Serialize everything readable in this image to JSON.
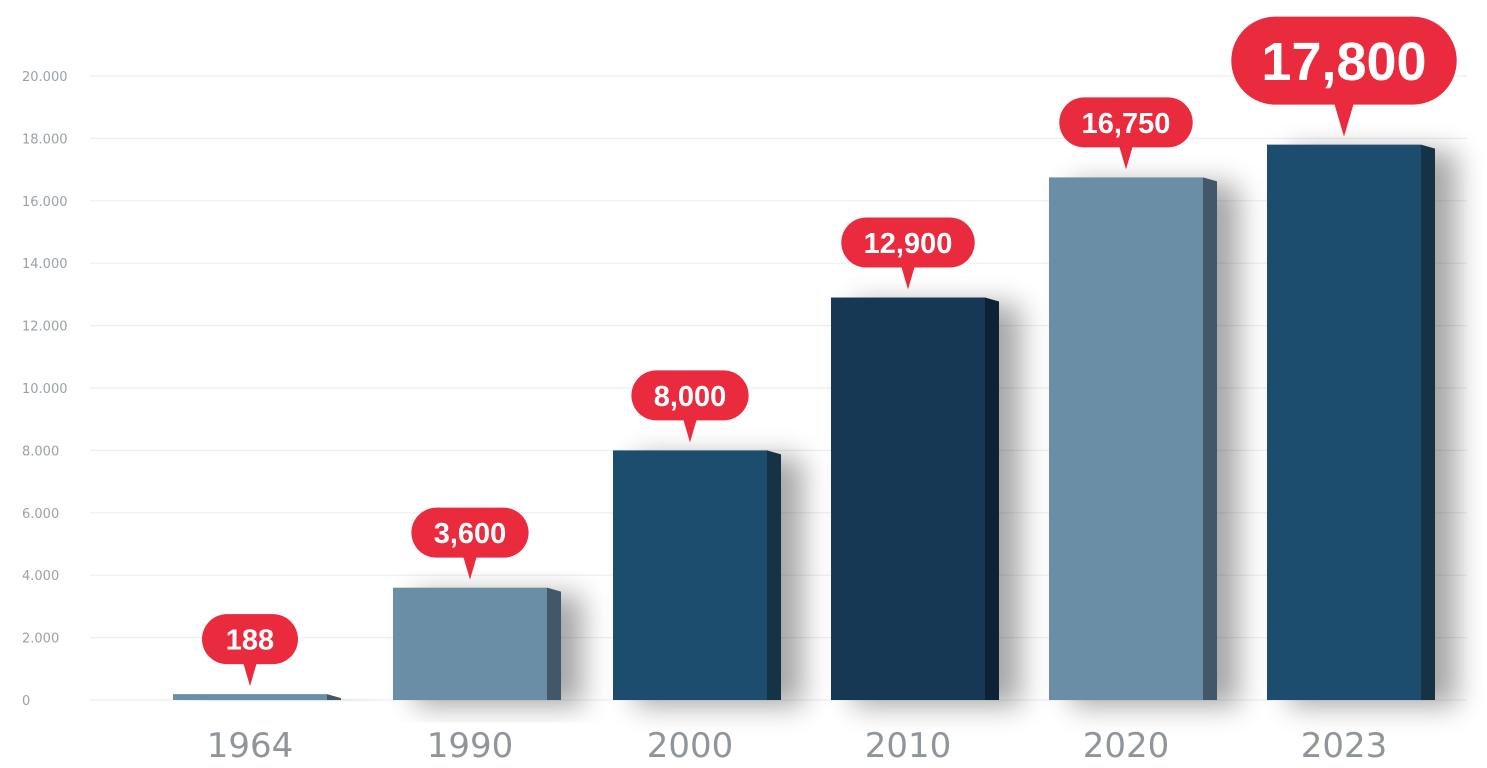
{
  "colors": {
    "accent_red": "#ea2a3d",
    "bar_dark": "#1f4d6e",
    "bar_darker": "#173954",
    "bar_light": "#6a8ea6",
    "grid": "#eceef1",
    "tick_text": "#9aa1a8"
  },
  "chart_data": {
    "type": "bar",
    "title": "",
    "xlabel": "",
    "ylabel": "",
    "categories": [
      "1964",
      "1990",
      "2000",
      "2010",
      "2020",
      "2023"
    ],
    "values": [
      188,
      3600,
      8000,
      12900,
      16750,
      17800
    ],
    "value_labels": [
      "188",
      "3,600",
      "8,000",
      "12,900",
      "16,750",
      "17,800"
    ],
    "ylim": [
      0,
      20000
    ],
    "y_ticks": [
      0,
      2000,
      4000,
      6000,
      8000,
      10000,
      12000,
      14000,
      16000,
      18000,
      20000
    ],
    "y_tick_labels": [
      "0",
      "2.000",
      "4.000",
      "6.000",
      "8.000",
      "10.000",
      "12.000",
      "14.000",
      "16.000",
      "18.000",
      "20.000"
    ],
    "bar_colors": [
      "#6a8ea6",
      "#6a8ea6",
      "#1f4d6e",
      "#173954",
      "#6a8ea6",
      "#1f4d6e"
    ],
    "grid": true,
    "legend": "none"
  }
}
